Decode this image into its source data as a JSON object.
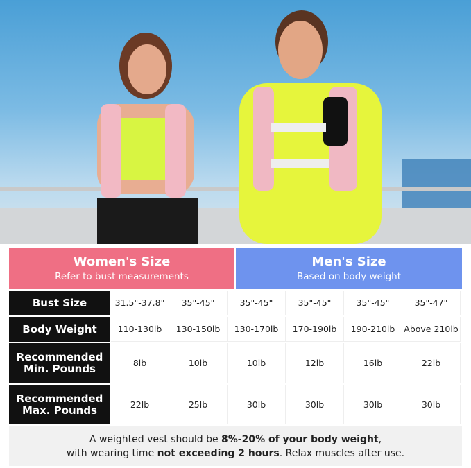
{
  "women": {
    "title": "Women's Size",
    "subtitle": "Refer to bust measurements",
    "color": "#ef6f84"
  },
  "men": {
    "title": "Men's Size",
    "subtitle": "Based on body weight",
    "color": "#6e93ee"
  },
  "rows": [
    {
      "label": "Bust Size",
      "values": [
        "31.5\"-37.8\"",
        "35\"-45\"",
        "35\"-45\"",
        "35\"-45\"",
        "35\"-45\"",
        "35\"-47\""
      ]
    },
    {
      "label": "Body Weight",
      "values": [
        "110-130lb",
        "130-150lb",
        "130-170lb",
        "170-190lb",
        "190-210lb",
        "Above 210lb"
      ]
    },
    {
      "label": "Recommended Min. Pounds",
      "values": [
        "8lb",
        "10lb",
        "10lb",
        "12lb",
        "16lb",
        "22lb"
      ]
    },
    {
      "label": "Recommended Max. Pounds",
      "values": [
        "22lb",
        "25lb",
        "30lb",
        "30lb",
        "30lb",
        "30lb"
      ]
    }
  ],
  "footer": {
    "p1": "A weighted vest should be ",
    "b1": "8%-20% of your body weight",
    ",": ",",
    "p2": "with wearing time ",
    "b2": "not exceeding 2 hours",
    "p3": ". Relax muscles after use."
  }
}
